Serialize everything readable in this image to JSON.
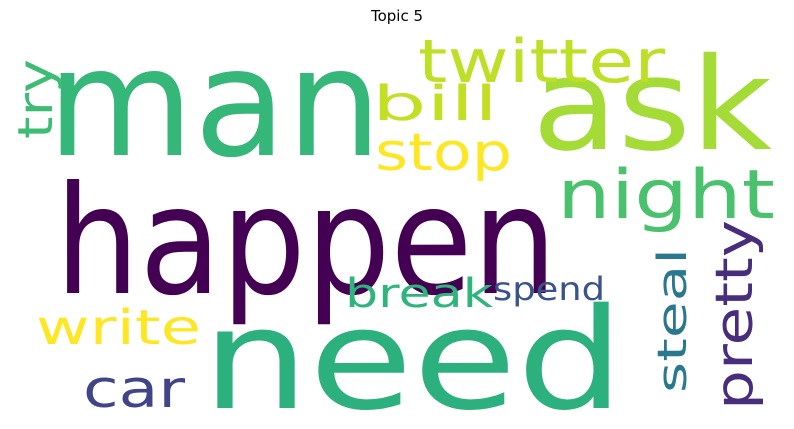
{
  "chart_data": {
    "type": "wordcloud",
    "title": "Topic 5",
    "words": [
      {
        "text": "man",
        "color": "#35b779"
      },
      {
        "text": "ask",
        "color": "#a5db36"
      },
      {
        "text": "happen",
        "color": "#440154"
      },
      {
        "text": "need",
        "color": "#2cb17e"
      },
      {
        "text": "twitter",
        "color": "#bddf26"
      },
      {
        "text": "bill",
        "color": "#c2df23"
      },
      {
        "text": "stop",
        "color": "#fde725"
      },
      {
        "text": "night",
        "color": "#4ac16d"
      },
      {
        "text": "try",
        "color": "#3dbc74"
      },
      {
        "text": "pretty",
        "color": "#472d7b"
      },
      {
        "text": "steal",
        "color": "#2a788e"
      },
      {
        "text": "break",
        "color": "#2fb47c"
      },
      {
        "text": "spend",
        "color": "#3b528b"
      },
      {
        "text": "write",
        "color": "#fde725"
      },
      {
        "text": "car",
        "color": "#414487"
      }
    ]
  }
}
